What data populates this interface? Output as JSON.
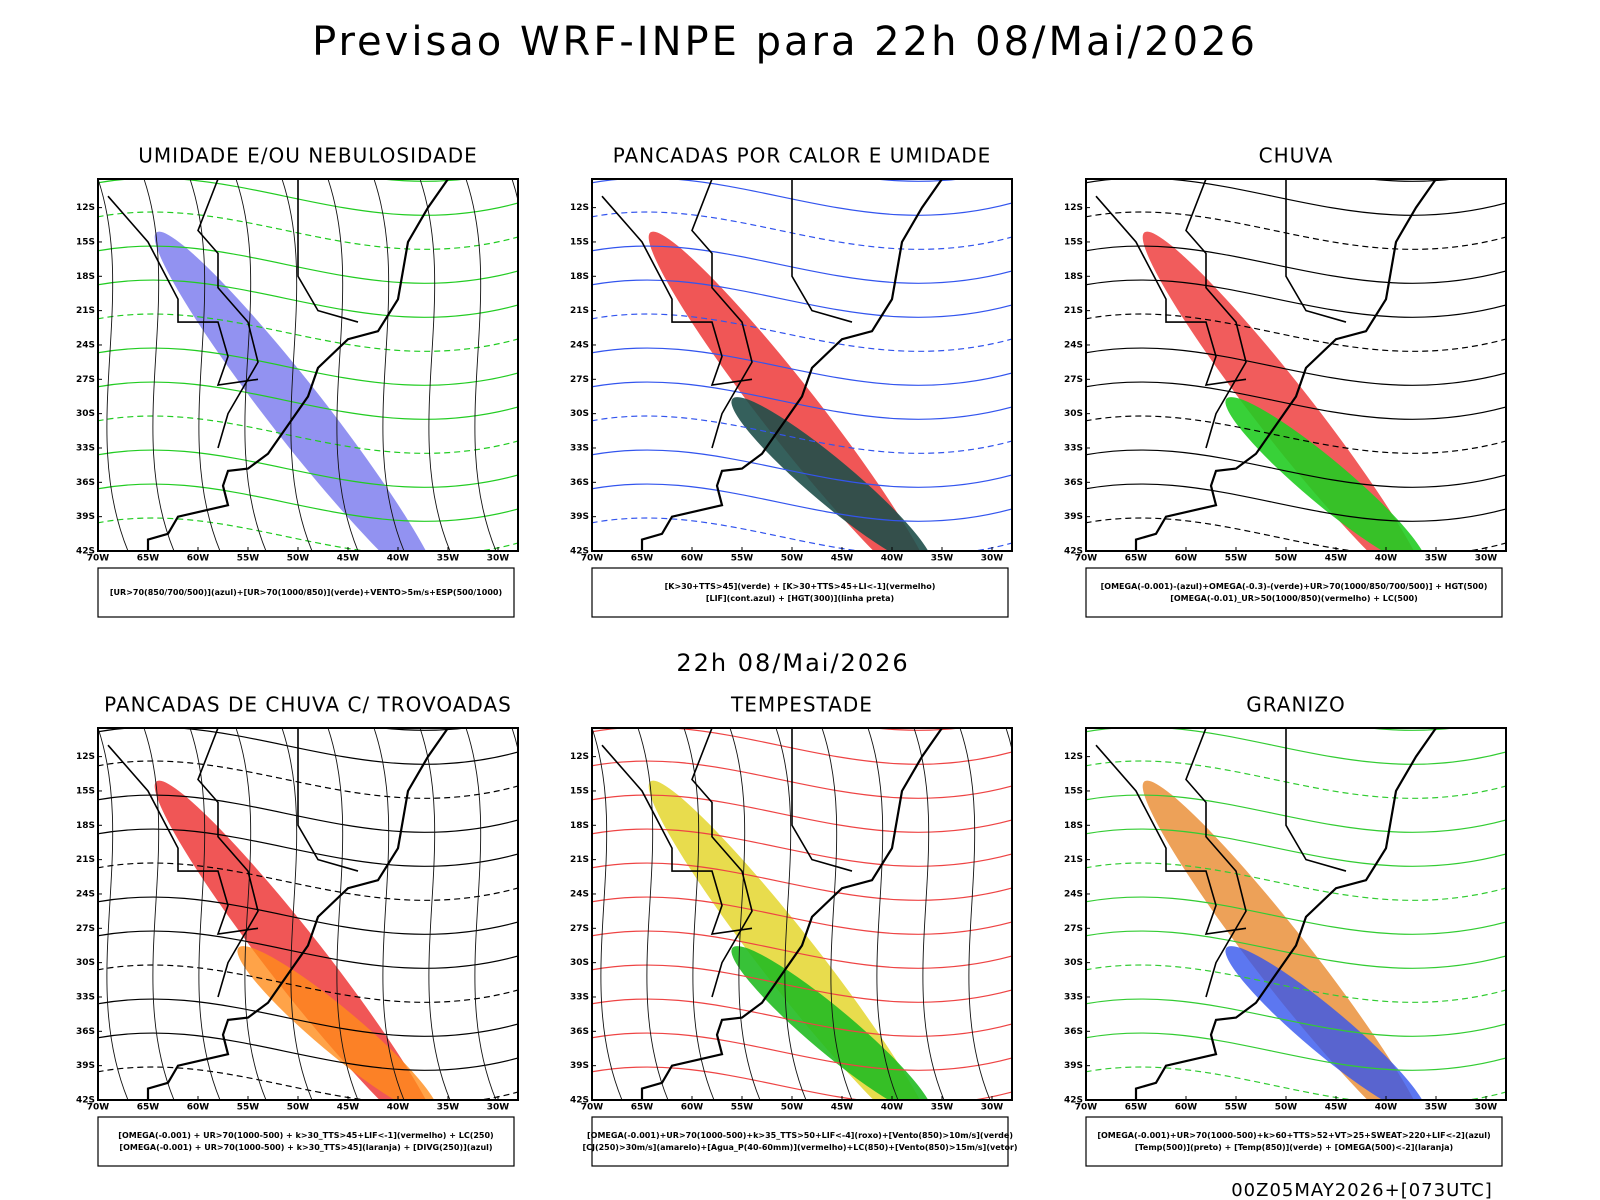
{
  "header": {
    "title": "Previsao WRF-INPE  para 22h 08/Mai/2026",
    "subtitle": "22h 08/Mai/2026",
    "footer": "00Z05MAY2026+[073UTC]"
  },
  "axes": {
    "lat": [
      "12S",
      "15S",
      "18S",
      "21S",
      "24S",
      "27S",
      "30S",
      "33S",
      "36S",
      "39S",
      "42S"
    ],
    "lon": [
      "70W",
      "65W",
      "60W",
      "55W",
      "50W",
      "45W",
      "40W",
      "35W",
      "30W"
    ]
  },
  "panels": [
    {
      "title": "UMIDADE E/OU NEBULOSIDADE",
      "legend": [
        "[UR>70(850/700/500)](azul)+[UR>70(1000/850)](verde)+VENTO>5m/s+ESP(500/1000)"
      ]
    },
    {
      "title": "PANCADAS POR CALOR E UMIDADE",
      "legend": [
        "[K>30+TTS>45](verde) + [K>30+TTS>45+LI<-1](vermelho)",
        "[LIF](cont.azul) + [HGT(300)](linha preta)"
      ]
    },
    {
      "title": "CHUVA",
      "legend": [
        "[OMEGA(-0.001)-(azul)+OMEGA(-0.3)-(verde)+UR>70(1000/850/700/500)] + HGT(500)",
        "[OMEGA(-0.01)_UR>50(1000/850)(vermelho) + LC(500)"
      ]
    },
    {
      "title": "PANCADAS DE CHUVA C/ TROVOADAS",
      "legend": [
        "[OMEGA(-0.001) + UR>70(1000-500) + k>30_TTS>45+LIF<-1](vermelho) + LC(250)",
        "[OMEGA(-0.001) + UR>70(1000-500) + k>30_TTS>45](laranja) + [DIVG(250)](azul)"
      ]
    },
    {
      "title": "TEMPESTADE",
      "legend": [
        "[OMEGA(-0.001)+UR>70(1000-500)+k>35_TTS>50+LIF<-4](roxo)+[Vento(850)>10m/s](verde)",
        "[CJ(250)>30m/s](amarelo)+[Agua_P(40-60mm)](vermelho)+LC(850)+[Vento(850)>15m/s](vetor)"
      ]
    },
    {
      "title": "GRANIZO",
      "legend": [
        "[OMEGA(-0.001)+UR>70(1000-500)+k>60+TTS>52+VT>25+SWEAT>220+LIF<-2](azul)",
        "[Temp(500)](preto) + [Temp(850)](verde) + [OMEGA(500)<-2](laranja)"
      ]
    }
  ]
}
